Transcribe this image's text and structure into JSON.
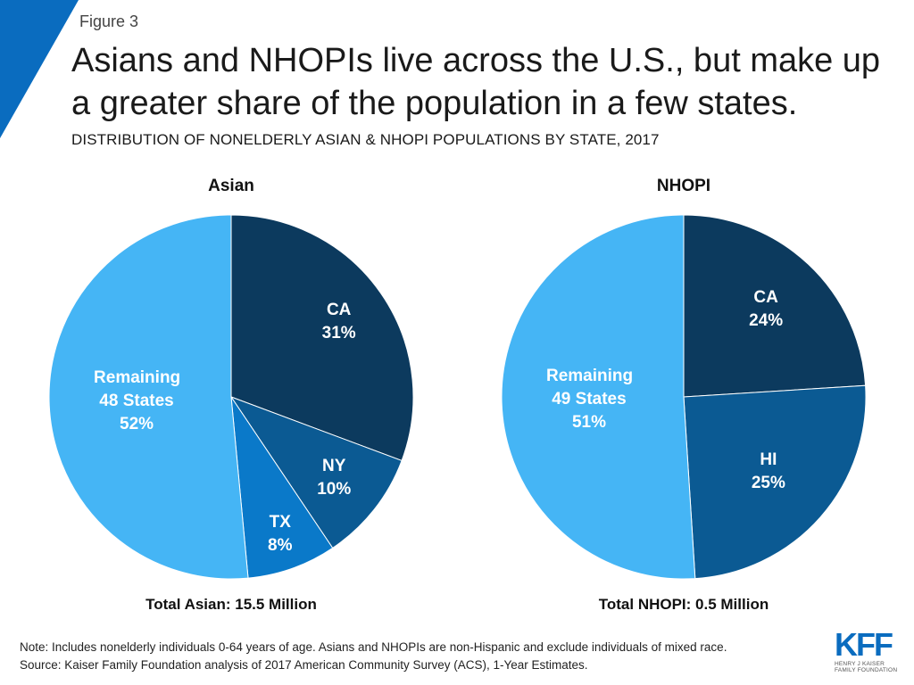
{
  "header": {
    "figure_label": "Figure 3",
    "title": "Asians and NHOPIs live across the U.S., but make up a greater share of the population in a few states.",
    "subtitle": "DISTRIBUTION OF NONELDERLY ASIAN & NHOPI POPULATIONS BY STATE, 2017"
  },
  "colors": {
    "accent": "#0a6cbf",
    "navy": "#0c3a5e",
    "dark_blue": "#0b5a93",
    "mid_blue": "#0a79c9",
    "light_blue": "#45b5f5"
  },
  "chart_data": [
    {
      "type": "pie",
      "title": "Asian",
      "total_label": "Total Asian: 15.5 Million",
      "slices": [
        {
          "label": "CA",
          "value": 31,
          "pct": "31%",
          "color": "#0c3a5e"
        },
        {
          "label": "NY",
          "value": 10,
          "pct": "10%",
          "color": "#0b5a93"
        },
        {
          "label": "TX",
          "value": 8,
          "pct": "8%",
          "color": "#0a79c9"
        },
        {
          "label": "Remaining 48 States",
          "value": 52,
          "pct": "52%",
          "color": "#45b5f5"
        }
      ]
    },
    {
      "type": "pie",
      "title": "NHOPI",
      "total_label": "Total NHOPI: 0.5 Million",
      "slices": [
        {
          "label": "CA",
          "value": 24,
          "pct": "24%",
          "color": "#0c3a5e"
        },
        {
          "label": "HI",
          "value": 25,
          "pct": "25%",
          "color": "#0b5a93"
        },
        {
          "label": "Remaining 49 States",
          "value": 51,
          "pct": "51%",
          "color": "#45b5f5"
        }
      ]
    }
  ],
  "footer": {
    "note": "Note: Includes nonelderly individuals 0-64 years of age. Asians and NHOPIs are non-Hispanic and exclude individuals of mixed race.",
    "source": "Source: Kaiser Family Foundation analysis of 2017 American Community Survey (ACS), 1-Year Estimates.",
    "logo_letters": "KFF",
    "logo_line1": "HENRY J KAISER",
    "logo_line2": "FAMILY FOUNDATION"
  }
}
